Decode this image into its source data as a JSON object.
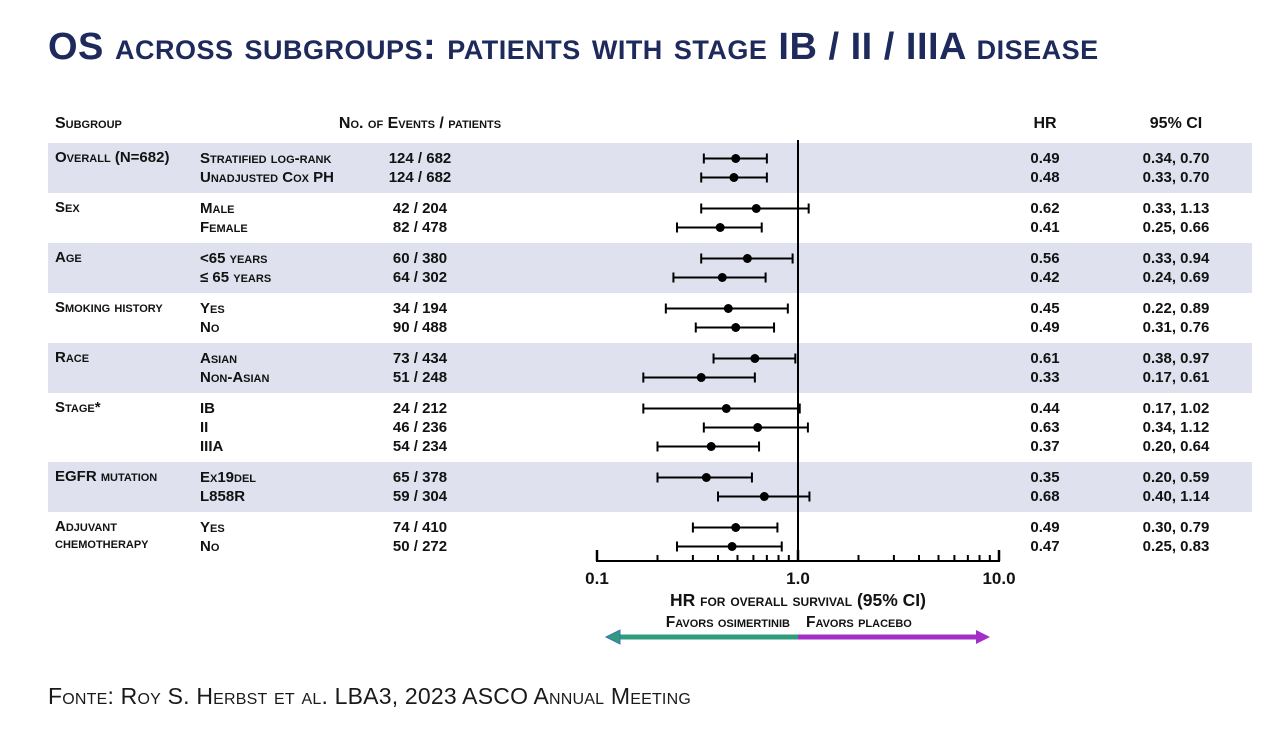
{
  "title": "OS across subgroups: patients with stage IB / II / IIIA disease",
  "columns": {
    "subgroup": "Subgroup",
    "events": "No. of Events / patients",
    "hr": "HR",
    "ci": "95% CI"
  },
  "chart_data": {
    "type": "forest",
    "x_axis": {
      "scale": "log",
      "range": [
        0.1,
        10.0
      ],
      "ticks": [
        0.1,
        1.0,
        10.0
      ],
      "tick_labels": [
        "0.1",
        "1.0",
        "10.0"
      ],
      "minor_ticks": [
        0.2,
        0.3,
        0.4,
        0.5,
        0.6,
        0.7,
        0.8,
        0.9,
        2,
        3,
        4,
        5,
        6,
        7,
        8,
        9
      ],
      "ref_line": 1.0,
      "label": "HR for overall survival (95% CI)"
    },
    "favors": {
      "left": "Favors osimertinib",
      "right": "Favors placebo",
      "left_color": "#2f9d7c",
      "right_color": "#a42fc6"
    },
    "groups": [
      {
        "label": "Overall (N=682)",
        "shaded": true,
        "rows": [
          {
            "level": "Stratified log-rank",
            "events": "124 / 682",
            "hr": 0.49,
            "ci_low": 0.34,
            "ci_high": 0.7,
            "hr_text": "0.49",
            "ci_text": "0.34, 0.70"
          },
          {
            "level": "Unadjusted Cox PH",
            "events": "124 / 682",
            "hr": 0.48,
            "ci_low": 0.33,
            "ci_high": 0.7,
            "hr_text": "0.48",
            "ci_text": "0.33, 0.70"
          }
        ]
      },
      {
        "label": "Sex",
        "shaded": false,
        "rows": [
          {
            "level": "Male",
            "events": "42 / 204",
            "hr": 0.62,
            "ci_low": 0.33,
            "ci_high": 1.13,
            "hr_text": "0.62",
            "ci_text": "0.33, 1.13"
          },
          {
            "level": "Female",
            "events": "82 / 478",
            "hr": 0.41,
            "ci_low": 0.25,
            "ci_high": 0.66,
            "hr_text": "0.41",
            "ci_text": "0.25, 0.66"
          }
        ]
      },
      {
        "label": "Age",
        "shaded": true,
        "rows": [
          {
            "level": "<65 years",
            "events": "60 / 380",
            "hr": 0.56,
            "ci_low": 0.33,
            "ci_high": 0.94,
            "hr_text": "0.56",
            "ci_text": "0.33, 0.94"
          },
          {
            "level": "≤ 65 years",
            "events": "64 / 302",
            "hr": 0.42,
            "ci_low": 0.24,
            "ci_high": 0.69,
            "hr_text": "0.42",
            "ci_text": "0.24, 0.69"
          }
        ]
      },
      {
        "label": "Smoking history",
        "shaded": false,
        "rows": [
          {
            "level": "Yes",
            "events": "34 / 194",
            "hr": 0.45,
            "ci_low": 0.22,
            "ci_high": 0.89,
            "hr_text": "0.45",
            "ci_text": "0.22, 0.89"
          },
          {
            "level": "No",
            "events": "90 / 488",
            "hr": 0.49,
            "ci_low": 0.31,
            "ci_high": 0.76,
            "hr_text": "0.49",
            "ci_text": "0.31, 0.76"
          }
        ]
      },
      {
        "label": "Race",
        "shaded": true,
        "rows": [
          {
            "level": "Asian",
            "events": "73 / 434",
            "hr": 0.61,
            "ci_low": 0.38,
            "ci_high": 0.97,
            "hr_text": "0.61",
            "ci_text": "0.38, 0.97"
          },
          {
            "level": "Non-Asian",
            "events": "51 / 248",
            "hr": 0.33,
            "ci_low": 0.17,
            "ci_high": 0.61,
            "hr_text": "0.33",
            "ci_text": "0.17, 0.61"
          }
        ]
      },
      {
        "label": "Stage*",
        "shaded": false,
        "rows": [
          {
            "level": "IB",
            "events": "24 / 212",
            "hr": 0.44,
            "ci_low": 0.17,
            "ci_high": 1.02,
            "hr_text": "0.44",
            "ci_text": "0.17, 1.02"
          },
          {
            "level": "II",
            "events": "46 / 236",
            "hr": 0.63,
            "ci_low": 0.34,
            "ci_high": 1.12,
            "hr_text": "0.63",
            "ci_text": "0.34, 1.12"
          },
          {
            "level": "IIIA",
            "events": "54 / 234",
            "hr": 0.37,
            "ci_low": 0.2,
            "ci_high": 0.64,
            "hr_text": "0.37",
            "ci_text": "0.20, 0.64"
          }
        ]
      },
      {
        "label": "EGFR mutation",
        "shaded": true,
        "rows": [
          {
            "level": "Ex19del",
            "events": "65 / 378",
            "hr": 0.35,
            "ci_low": 0.2,
            "ci_high": 0.59,
            "hr_text": "0.35",
            "ci_text": "0.20, 0.59"
          },
          {
            "level": "L858R",
            "events": "59 / 304",
            "hr": 0.68,
            "ci_low": 0.4,
            "ci_high": 1.14,
            "hr_text": "0.68",
            "ci_text": "0.40, 1.14"
          }
        ]
      },
      {
        "label": "Adjuvant\nchemotherapy",
        "shaded": false,
        "rows": [
          {
            "level": "Yes",
            "events": "74 / 410",
            "hr": 0.49,
            "ci_low": 0.3,
            "ci_high": 0.79,
            "hr_text": "0.49",
            "ci_text": "0.30, 0.79"
          },
          {
            "level": "No",
            "events": "50 / 272",
            "hr": 0.47,
            "ci_low": 0.25,
            "ci_high": 0.83,
            "hr_text": "0.47",
            "ci_text": "0.25, 0.83"
          }
        ]
      }
    ]
  },
  "footer": {
    "text": "Fonte: Roy S. Herbst et al. LBA3, 2023 ASCO Annual Meeting"
  }
}
